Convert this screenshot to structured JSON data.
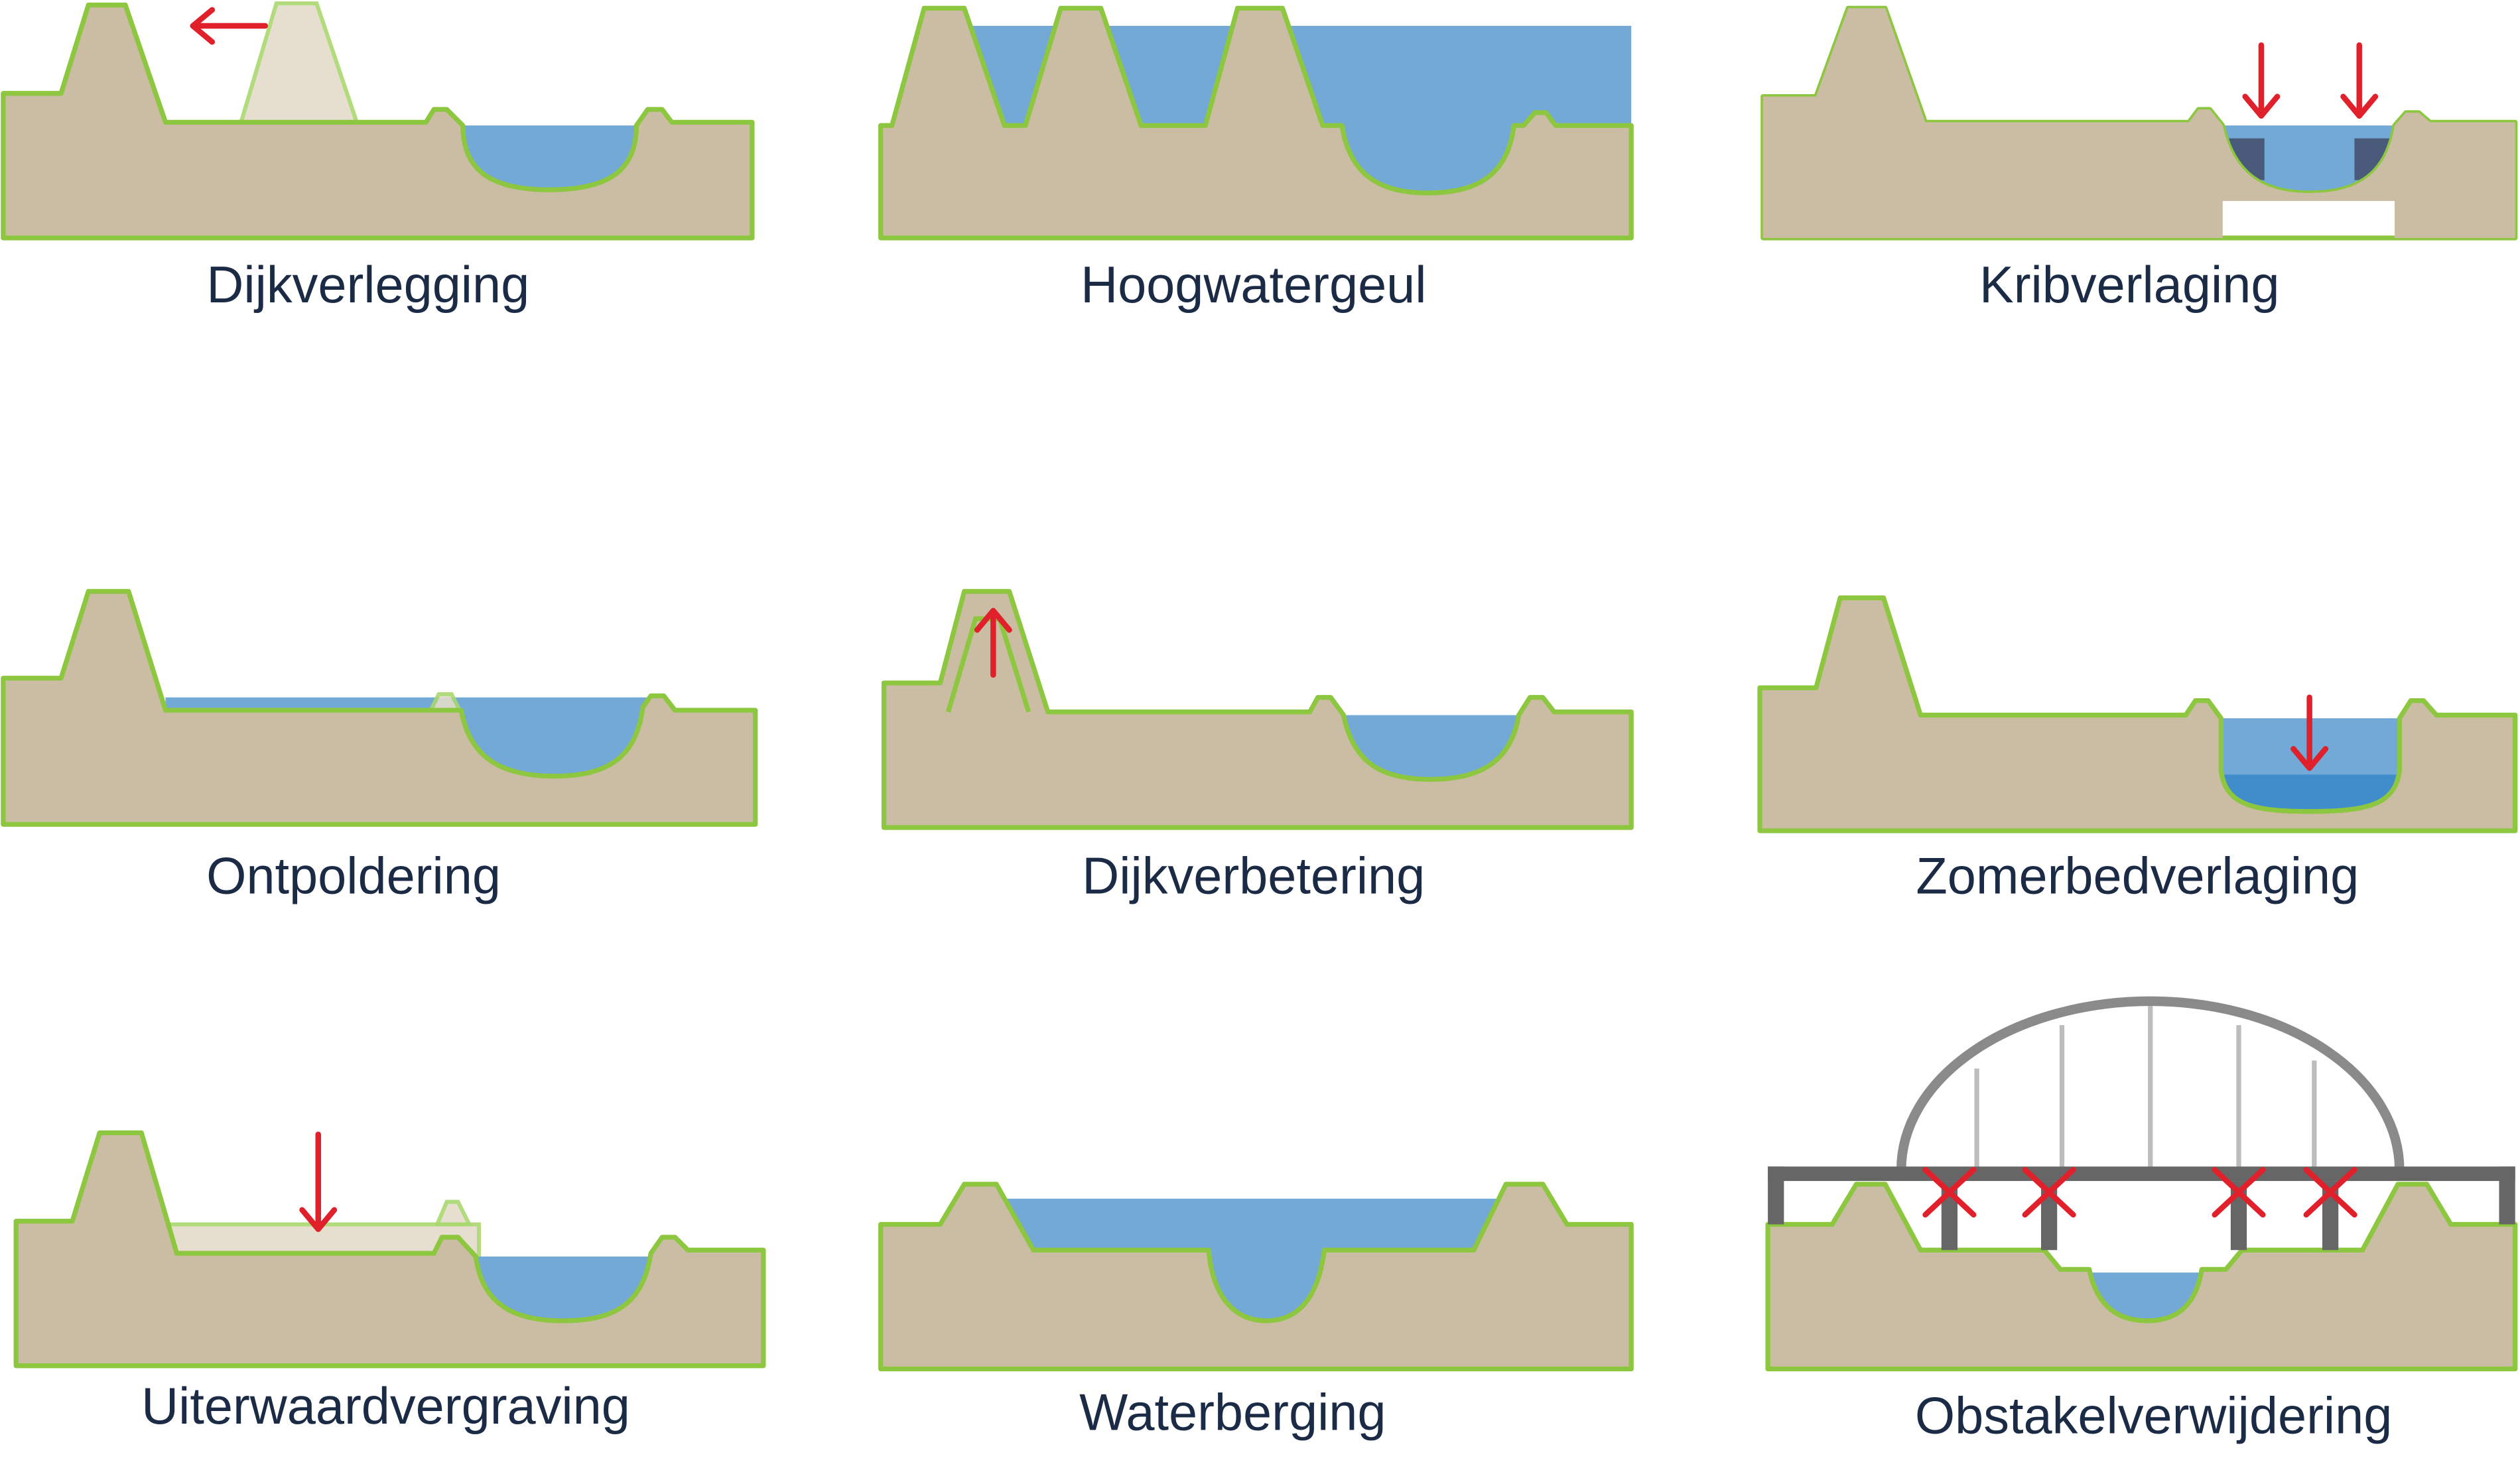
{
  "panels": [
    {
      "label": "Dijkverlegging"
    },
    {
      "label": "Hoogwatergeul"
    },
    {
      "label": "Kribverlaging"
    },
    {
      "label": "Ontpoldering"
    },
    {
      "label": "Dijkverbetering"
    },
    {
      "label": "Zomerbedverlaging"
    },
    {
      "label": "Uiterwaardvergraving"
    },
    {
      "label": "Waterberging"
    },
    {
      "label": "Obstakelverwijdering"
    }
  ]
}
